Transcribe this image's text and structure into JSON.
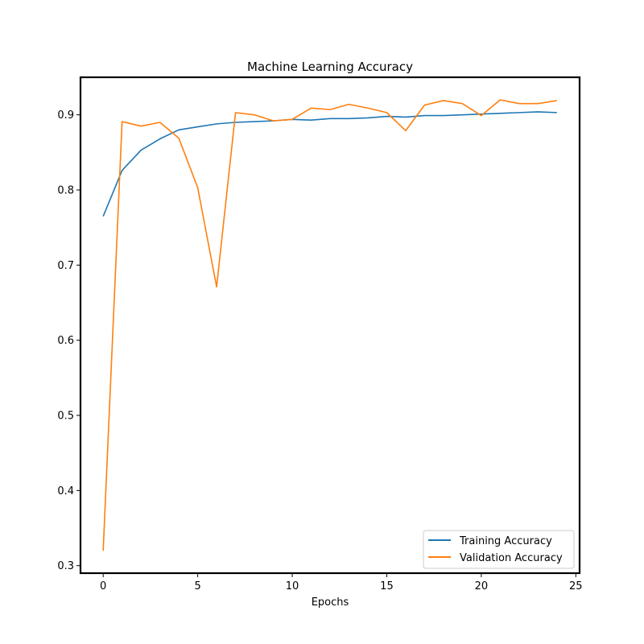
{
  "chart_data": {
    "type": "line",
    "title": "Machine Learning Accuracy",
    "xlabel": "Epochs",
    "ylabel": "",
    "xlim": [
      -1.2,
      25.2
    ],
    "ylim": [
      0.29,
      0.95
    ],
    "xticks": [
      0,
      5,
      10,
      15,
      20,
      25
    ],
    "yticks": [
      0.3,
      0.4,
      0.5,
      0.6,
      0.7,
      0.8,
      0.9
    ],
    "xtick_labels": [
      "0",
      "5",
      "10",
      "15",
      "20",
      "25"
    ],
    "ytick_labels": [
      "0.3",
      "0.4",
      "0.5",
      "0.6",
      "0.7",
      "0.8",
      "0.9"
    ],
    "grid": false,
    "legend_position": "lower-right",
    "x": [
      0,
      1,
      2,
      3,
      4,
      5,
      6,
      7,
      8,
      9,
      10,
      11,
      12,
      13,
      14,
      15,
      16,
      17,
      18,
      19,
      20,
      21,
      22,
      23,
      24
    ],
    "series": [
      {
        "name": "Training Accuracy",
        "color": "#1f77b4",
        "values": [
          0.765,
          0.826,
          0.853,
          0.868,
          0.88,
          0.884,
          0.888,
          0.89,
          0.891,
          0.892,
          0.894,
          0.893,
          0.895,
          0.895,
          0.896,
          0.898,
          0.897,
          0.899,
          0.899,
          0.9,
          0.901,
          0.902,
          0.903,
          0.904,
          0.903
        ]
      },
      {
        "name": "Validation Accuracy",
        "color": "#ff7f0e",
        "values": [
          0.32,
          0.891,
          0.885,
          0.89,
          0.869,
          0.803,
          0.671,
          0.903,
          0.9,
          0.892,
          0.894,
          0.909,
          0.907,
          0.914,
          0.909,
          0.903,
          0.879,
          0.913,
          0.919,
          0.915,
          0.899,
          0.92,
          0.915,
          0.915,
          0.919
        ]
      }
    ]
  }
}
